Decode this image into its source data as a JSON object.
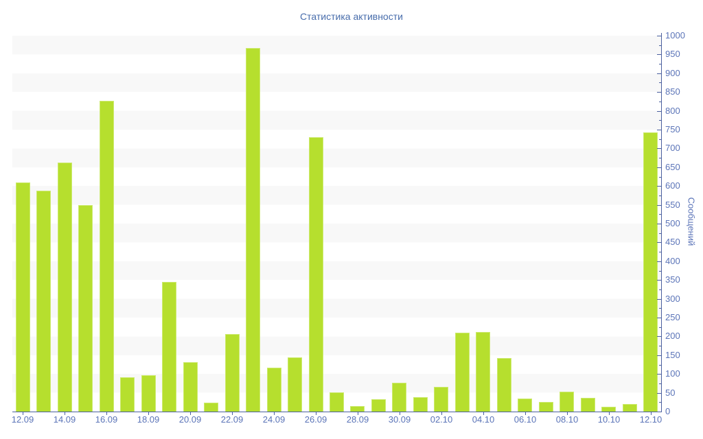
{
  "chart_data": {
    "type": "bar",
    "title": "Статистика активности",
    "ylabel": "Сообщений",
    "xlabel": "",
    "ylim": [
      0,
      1000
    ],
    "grid": "horizontal-stripes-every-50",
    "legend": "none",
    "categories": [
      "12.09",
      "13.09",
      "14.09",
      "15.09",
      "16.09",
      "17.09",
      "18.09",
      "19.09",
      "20.09",
      "21.09",
      "22.09",
      "23.09",
      "24.09",
      "25.09",
      "26.09",
      "27.09",
      "28.09",
      "29.09",
      "30.09",
      "01.10",
      "02.10",
      "03.10",
      "04.10",
      "05.10",
      "06.10",
      "07.10",
      "08.10",
      "09.10",
      "10.10",
      "11.10",
      "12.10"
    ],
    "values": [
      610,
      588,
      662,
      550,
      827,
      92,
      97,
      345,
      132,
      24,
      206,
      967,
      117,
      145,
      730,
      52,
      15,
      33,
      76,
      38,
      65,
      210,
      211,
      142,
      35,
      26,
      53,
      36,
      13,
      20,
      742
    ]
  },
  "y_axis": {
    "title": "Сообщений",
    "min": 0,
    "max": 1000,
    "major_step": 50,
    "minor_step": 25,
    "tick_labels": [
      "0",
      "50",
      "100",
      "150",
      "200",
      "250",
      "300",
      "350",
      "400",
      "450",
      "500",
      "550",
      "600",
      "650",
      "700",
      "750",
      "800",
      "850",
      "900",
      "950",
      "1000"
    ],
    "side": "right"
  },
  "x_axis": {
    "tick_labels": [
      "12.09",
      "14.09",
      "16.09",
      "18.09",
      "20.09",
      "22.09",
      "24.09",
      "26.09",
      "28.09",
      "30.09",
      "02.10",
      "04.10",
      "06.10",
      "08.10",
      "10.10",
      "12.10"
    ],
    "labeled_every_n_bars": 2
  },
  "colors": {
    "bar_fill": "#b6df2e",
    "bar_border": "#cdea70",
    "axis_line": "#4a5f9e",
    "tick_mark": "#4a5f9e",
    "tick_text": "#5b74b8",
    "title_text": "#47A",
    "title_text_hex": "#476cab",
    "stripe_gray": "#f8f8f8",
    "background": "#ffffff"
  }
}
